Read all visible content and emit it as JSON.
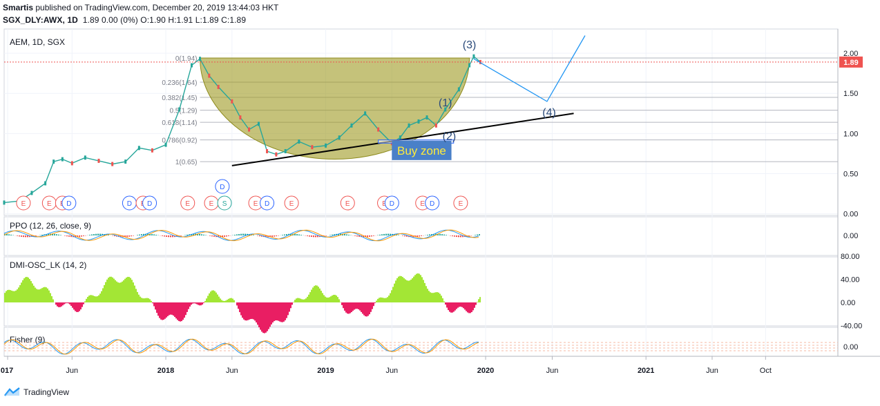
{
  "header": {
    "line1_user": "Smartis",
    "line1_rest": " published on TradingView.com, December 20, 2019 13:44:03 HKT",
    "symbol": "SGX_DLY:AWX, 1D",
    "values": "1.89 0.00 (0%) O:1.90 H:1.91 L:1.89 C:1.89"
  },
  "footer": {
    "brand": "TradingView"
  },
  "chart_data": {
    "type": "candlestick",
    "title": "AEM, 1D, SGX",
    "last_price": 1.89,
    "last_price_label": "1.89",
    "price_axis": {
      "range": [
        -0.02,
        2.25
      ],
      "ticks": [
        "2.00",
        "1.50",
        "1.00",
        "0.50",
        "0.00"
      ],
      "tick_values": [
        2.0,
        1.5,
        1.0,
        0.5,
        0.0
      ]
    },
    "time_axis": {
      "labels": [
        "017",
        "Jun",
        "2018",
        "Jun",
        "2019",
        "Jun",
        "2020",
        "Jun",
        "2021",
        "Jun",
        "Oct"
      ],
      "label_dates": [
        "2017-01-05",
        "2017-06-01",
        "2018-01-01",
        "2018-06-01",
        "2019-01-01",
        "2019-06-01",
        "2020-01-01",
        "2020-06-01",
        "2021-01-01",
        "2021-06-01",
        "2021-10-01"
      ],
      "range": [
        "2016-12-28",
        "2022-03-15"
      ]
    },
    "price_series": [
      {
        "date": "2016-12-28",
        "close": 0.14
      },
      {
        "date": "2017-02-01",
        "close": 0.16
      },
      {
        "date": "2017-03-01",
        "close": 0.26
      },
      {
        "date": "2017-04-01",
        "close": 0.38
      },
      {
        "date": "2017-04-20",
        "close": 0.65
      },
      {
        "date": "2017-05-10",
        "close": 0.68
      },
      {
        "date": "2017-06-01",
        "close": 0.63
      },
      {
        "date": "2017-07-01",
        "close": 0.7
      },
      {
        "date": "2017-08-01",
        "close": 0.66
      },
      {
        "date": "2017-09-01",
        "close": 0.62
      },
      {
        "date": "2017-10-01",
        "close": 0.65
      },
      {
        "date": "2017-11-01",
        "close": 0.82
      },
      {
        "date": "2017-12-01",
        "close": 0.79
      },
      {
        "date": "2018-01-01",
        "close": 0.86
      },
      {
        "date": "2018-02-01",
        "close": 1.3
      },
      {
        "date": "2018-03-01",
        "close": 1.85
      },
      {
        "date": "2018-03-20",
        "close": 1.93
      },
      {
        "date": "2018-04-10",
        "close": 1.72
      },
      {
        "date": "2018-05-01",
        "close": 1.58
      },
      {
        "date": "2018-06-01",
        "close": 1.4
      },
      {
        "date": "2018-06-20",
        "close": 1.2
      },
      {
        "date": "2018-07-10",
        "close": 1.05
      },
      {
        "date": "2018-08-01",
        "close": 1.12
      },
      {
        "date": "2018-08-20",
        "close": 0.78
      },
      {
        "date": "2018-09-10",
        "close": 0.74
      },
      {
        "date": "2018-10-01",
        "close": 0.78
      },
      {
        "date": "2018-11-01",
        "close": 0.9
      },
      {
        "date": "2018-12-01",
        "close": 0.83
      },
      {
        "date": "2019-01-01",
        "close": 0.85
      },
      {
        "date": "2019-02-01",
        "close": 0.95
      },
      {
        "date": "2019-03-01",
        "close": 1.1
      },
      {
        "date": "2019-04-01",
        "close": 1.25
      },
      {
        "date": "2019-05-01",
        "close": 1.05
      },
      {
        "date": "2019-06-01",
        "close": 0.88
      },
      {
        "date": "2019-06-20",
        "close": 0.95
      },
      {
        "date": "2019-07-10",
        "close": 1.1
      },
      {
        "date": "2019-08-01",
        "close": 1.15
      },
      {
        "date": "2019-08-20",
        "close": 1.2
      },
      {
        "date": "2019-09-10",
        "close": 1.1
      },
      {
        "date": "2019-10-01",
        "close": 1.3
      },
      {
        "date": "2019-11-01",
        "close": 1.55
      },
      {
        "date": "2019-11-25",
        "close": 1.85
      },
      {
        "date": "2019-12-05",
        "close": 1.96
      },
      {
        "date": "2019-12-20",
        "close": 1.89
      }
    ],
    "fibonacci": [
      {
        "label": "0(1.94)",
        "value": 1.94
      },
      {
        "label": "0.236(1.64)",
        "value": 1.64
      },
      {
        "label": "0.382(1.45)",
        "value": 1.45
      },
      {
        "label": "0.5(1.29)",
        "value": 1.29
      },
      {
        "label": "0.618(1.14)",
        "value": 1.14
      },
      {
        "label": "0.786(0.92)",
        "value": 0.92
      },
      {
        "label": "1(0.65)",
        "value": 0.65
      }
    ],
    "cup_color": "#9e9a22",
    "trendline": {
      "from": {
        "date": "2018-06-01",
        "value": 0.6
      },
      "to": {
        "date": "2020-07-20",
        "value": 1.25
      }
    },
    "wave_labels": [
      {
        "label": "(1)",
        "date": "2019-10-01",
        "value": 1.34
      },
      {
        "label": "(2)",
        "date": "2019-10-10",
        "value": 0.92
      },
      {
        "label": "(3)",
        "date": "2019-11-25",
        "value": 2.06
      },
      {
        "label": "(4)",
        "date": "2020-05-25",
        "value": 1.22
      }
    ],
    "projection": [
      {
        "date": "2019-12-05",
        "value": 1.93
      },
      {
        "date": "2020-05-20",
        "value": 1.4
      },
      {
        "date": "2020-08-15",
        "value": 2.22
      }
    ],
    "buy_zone": {
      "label": "Buy zone",
      "from": "2019-05-01",
      "to": "2019-10-20",
      "top": 0.92,
      "bottom": 0.88
    },
    "events": [
      {
        "type": "E",
        "date": "2017-02-10"
      },
      {
        "type": "E",
        "date": "2017-04-10"
      },
      {
        "type": "E",
        "date": "2017-05-10"
      },
      {
        "type": "D",
        "date": "2017-05-25"
      },
      {
        "type": "D",
        "date": "2017-10-10"
      },
      {
        "type": "E",
        "date": "2017-11-10"
      },
      {
        "type": "D",
        "date": "2017-11-25"
      },
      {
        "type": "E",
        "date": "2018-02-20"
      },
      {
        "type": "E",
        "date": "2018-04-15"
      },
      {
        "type": "S",
        "date": "2018-05-15"
      },
      {
        "type": "D",
        "date": "2018-05-10",
        "raised": true
      },
      {
        "type": "E",
        "date": "2018-07-25"
      },
      {
        "type": "D",
        "date": "2018-08-20"
      },
      {
        "type": "E",
        "date": "2018-10-15"
      },
      {
        "type": "E",
        "date": "2019-02-20"
      },
      {
        "type": "E",
        "date": "2019-05-15"
      },
      {
        "type": "D",
        "date": "2019-06-01"
      },
      {
        "type": "E",
        "date": "2019-08-10"
      },
      {
        "type": "D",
        "date": "2019-09-01"
      },
      {
        "type": "E",
        "date": "2019-11-05"
      }
    ],
    "indicators": [
      {
        "name": "PPO (12, 26, close, 9)",
        "ticks": [
          "0.00"
        ]
      },
      {
        "name": "DMI-OSC_LK (14, 2)",
        "ticks": [
          "80.00",
          "40.00",
          "0.00",
          "-40.00"
        ]
      },
      {
        "name": "Fisher (9)",
        "ticks": [
          "0.00"
        ]
      }
    ],
    "colors": {
      "up": "#26a69a",
      "down": "#ef5350",
      "price_line": "#ef5350",
      "osc_pos": "#a3e635",
      "osc_neg": "#e91e63",
      "blue": "#2962ff"
    }
  }
}
